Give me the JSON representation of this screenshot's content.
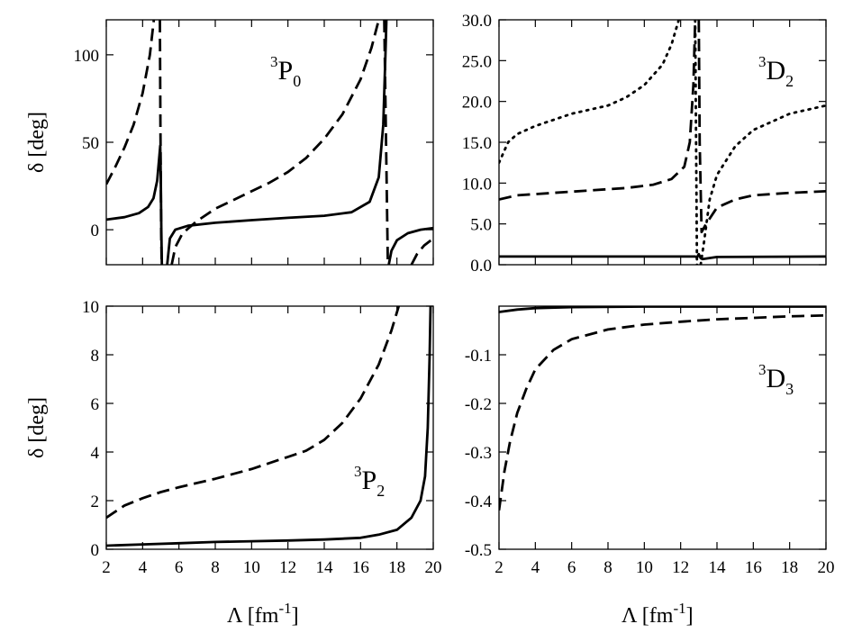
{
  "chart_data": [
    {
      "id": "p0",
      "type": "line",
      "channel": {
        "sup": "3",
        "letter": "P",
        "sub": "0"
      },
      "ylabel": "δ [deg]",
      "xlabel": "",
      "xlim": [
        2,
        20
      ],
      "ylim": [
        -20,
        120
      ],
      "yticks": [
        0,
        50,
        100
      ],
      "yticklabels": [
        "0",
        "50",
        "100"
      ],
      "xticks": [
        2,
        4,
        6,
        8,
        10,
        12,
        14,
        16,
        18,
        20
      ],
      "xticklabels": [],
      "series": [
        {
          "name": "solid",
          "dash": "solid",
          "segments": [
            [
              [
                2.0,
                5.8
              ],
              [
                3.0,
                7.2
              ],
              [
                3.8,
                9.5
              ],
              [
                4.3,
                13
              ],
              [
                4.6,
                18
              ],
              [
                4.8,
                28
              ],
              [
                4.92,
                42
              ],
              [
                4.97,
                48
              ],
              [
                5.0,
                30
              ],
              [
                5.03,
                0
              ],
              [
                5.06,
                -20
              ]
            ],
            [
              [
                5.35,
                -20
              ],
              [
                5.5,
                -5
              ],
              [
                5.8,
                0
              ],
              [
                6.5,
                2.3
              ],
              [
                8,
                4
              ],
              [
                10,
                5.5
              ],
              [
                12,
                6.8
              ],
              [
                14,
                8
              ],
              [
                15.5,
                10
              ],
              [
                16.5,
                16
              ],
              [
                17.0,
                30
              ],
              [
                17.25,
                60
              ],
              [
                17.38,
                105
              ],
              [
                17.42,
                120
              ]
            ],
            [
              [
                17.55,
                -20
              ],
              [
                17.7,
                -12
              ],
              [
                18.0,
                -6
              ],
              [
                18.6,
                -2
              ],
              [
                19.3,
                0
              ],
              [
                20,
                1
              ]
            ]
          ]
        },
        {
          "name": "dashed",
          "dash": "dashed",
          "segments": [
            [
              [
                2.0,
                26
              ],
              [
                2.5,
                36
              ],
              [
                3.0,
                47
              ],
              [
                3.5,
                60
              ],
              [
                4.0,
                78
              ],
              [
                4.4,
                100
              ],
              [
                4.62,
                120
              ]
            ],
            [
              [
                4.95,
                120
              ],
              [
                4.98,
                60
              ],
              [
                5.02,
                0
              ],
              [
                5.05,
                -20
              ]
            ],
            [
              [
                5.6,
                -20
              ],
              [
                5.8,
                -10
              ],
              [
                6.2,
                -2
              ],
              [
                7,
                5
              ],
              [
                8,
                12
              ],
              [
                9,
                17
              ],
              [
                10,
                22
              ],
              [
                11,
                27
              ],
              [
                12,
                33
              ],
              [
                13,
                41
              ],
              [
                14,
                52
              ],
              [
                15,
                66
              ],
              [
                16,
                86
              ],
              [
                16.6,
                104
              ],
              [
                17.0,
                120
              ]
            ],
            [
              [
                17.3,
                120
              ],
              [
                17.4,
                50
              ],
              [
                17.5,
                -20
              ]
            ],
            [
              [
                18.8,
                -20
              ],
              [
                19.1,
                -14
              ],
              [
                19.5,
                -9
              ],
              [
                20,
                -5
              ]
            ]
          ]
        }
      ]
    },
    {
      "id": "d2",
      "type": "line",
      "channel": {
        "sup": "3",
        "letter": "D",
        "sub": "2"
      },
      "ylabel": "",
      "xlabel": "",
      "xlim": [
        2,
        20
      ],
      "ylim": [
        0,
        30
      ],
      "yticks": [
        0,
        5,
        10,
        15,
        20,
        25,
        30
      ],
      "yticklabels": [
        "0.0",
        "5.0",
        "10.0",
        "15.0",
        "20.0",
        "25.0",
        "30.0"
      ],
      "xticks": [
        2,
        4,
        6,
        8,
        10,
        12,
        14,
        16,
        18,
        20
      ],
      "xticklabels": [],
      "series": [
        {
          "name": "solid",
          "dash": "solid",
          "segments": [
            [
              [
                2,
                1.0
              ],
              [
                12.8,
                1.0
              ],
              [
                12.9,
                0.9
              ],
              [
                13.0,
                1.3
              ],
              [
                13.1,
                0.8
              ],
              [
                13.2,
                0.7
              ],
              [
                14,
                0.95
              ],
              [
                20,
                1.0
              ]
            ]
          ]
        },
        {
          "name": "dashed",
          "dash": "dashed",
          "segments": [
            [
              [
                2,
                8.0
              ],
              [
                3,
                8.5
              ],
              [
                5,
                8.8
              ],
              [
                7,
                9.1
              ],
              [
                9,
                9.4
              ],
              [
                10.5,
                9.8
              ],
              [
                11.5,
                10.5
              ],
              [
                12.2,
                12
              ],
              [
                12.5,
                15
              ],
              [
                12.7,
                22
              ],
              [
                12.8,
                30
              ]
            ],
            [
              [
                13.0,
                30
              ],
              [
                13.05,
                15
              ],
              [
                13.15,
                4
              ],
              [
                13.4,
                5
              ],
              [
                14,
                7
              ],
              [
                15,
                8
              ],
              [
                16,
                8.5
              ],
              [
                18,
                8.8
              ],
              [
                20,
                9.0
              ]
            ]
          ]
        },
        {
          "name": "dotted",
          "dash": "dotted",
          "segments": [
            [
              [
                2,
                12.5
              ],
              [
                2.5,
                15
              ],
              [
                3,
                16
              ],
              [
                4,
                17
              ],
              [
                6,
                18.5
              ],
              [
                8,
                19.5
              ],
              [
                9,
                20.5
              ],
              [
                10,
                22
              ],
              [
                11,
                24.5
              ],
              [
                11.5,
                27
              ],
              [
                11.9,
                30
              ]
            ],
            [
              [
                12.8,
                30
              ],
              [
                12.85,
                15
              ],
              [
                12.9,
                0
              ]
            ],
            [
              [
                13.1,
                0
              ],
              [
                13.3,
                3
              ],
              [
                13.6,
                8
              ],
              [
                14,
                11
              ],
              [
                15,
                14.5
              ],
              [
                16,
                16.5
              ],
              [
                18,
                18.5
              ],
              [
                20,
                19.5
              ]
            ]
          ]
        }
      ]
    },
    {
      "id": "p2",
      "type": "line",
      "channel": {
        "sup": "3",
        "letter": "P",
        "sub": "2"
      },
      "ylabel": "δ [deg]",
      "xlabel": "Λ [fm",
      "xlabel_sup": "-1",
      "xlabel_tail": "]",
      "xlim": [
        2,
        20
      ],
      "ylim": [
        0,
        10
      ],
      "yticks": [
        0,
        2,
        4,
        6,
        8,
        10
      ],
      "yticklabels": [
        "0",
        "2",
        "4",
        "6",
        "8",
        "10"
      ],
      "xticks": [
        2,
        4,
        6,
        8,
        10,
        12,
        14,
        16,
        18,
        20
      ],
      "xticklabels": [
        "2",
        "4",
        "6",
        "8",
        "10",
        "12",
        "14",
        "16",
        "18",
        "20"
      ],
      "series": [
        {
          "name": "solid",
          "dash": "solid",
          "segments": [
            [
              [
                2,
                0.15
              ],
              [
                4,
                0.2
              ],
              [
                6,
                0.25
              ],
              [
                8,
                0.3
              ],
              [
                10,
                0.33
              ],
              [
                12,
                0.36
              ],
              [
                14,
                0.4
              ],
              [
                16,
                0.47
              ],
              [
                17,
                0.6
              ],
              [
                18,
                0.8
              ],
              [
                18.8,
                1.3
              ],
              [
                19.3,
                2.0
              ],
              [
                19.55,
                3.0
              ],
              [
                19.7,
                5
              ],
              [
                19.8,
                8
              ],
              [
                19.85,
                10
              ]
            ]
          ]
        },
        {
          "name": "dashed",
          "dash": "dashed",
          "segments": [
            [
              [
                2,
                1.3
              ],
              [
                3,
                1.8
              ],
              [
                4,
                2.1
              ],
              [
                5,
                2.35
              ],
              [
                6,
                2.55
              ],
              [
                8,
                2.9
              ],
              [
                10,
                3.3
              ],
              [
                12,
                3.8
              ],
              [
                13,
                4.05
              ],
              [
                14,
                4.5
              ],
              [
                15,
                5.2
              ],
              [
                16,
                6.2
              ],
              [
                17,
                7.6
              ],
              [
                17.7,
                9.0
              ],
              [
                18.1,
                10
              ]
            ]
          ]
        }
      ]
    },
    {
      "id": "d3",
      "type": "line",
      "channel": {
        "sup": "3",
        "letter": "D",
        "sub": "3"
      },
      "ylabel": "",
      "xlabel": "Λ [fm",
      "xlabel_sup": "-1",
      "xlabel_tail": "]",
      "xlim": [
        2,
        20
      ],
      "ylim": [
        -0.5,
        0
      ],
      "yticks": [
        -0.5,
        -0.4,
        -0.3,
        -0.2,
        -0.1
      ],
      "yticklabels": [
        "-0.5",
        "-0.4",
        "-0.3",
        "-0.2",
        "-0.1"
      ],
      "xticks": [
        2,
        4,
        6,
        8,
        10,
        12,
        14,
        16,
        18,
        20
      ],
      "xticklabels": [
        "2",
        "4",
        "6",
        "8",
        "10",
        "12",
        "14",
        "16",
        "18",
        "20"
      ],
      "series": [
        {
          "name": "solid",
          "dash": "solid",
          "segments": [
            [
              [
                2,
                -0.012
              ],
              [
                3,
                -0.007
              ],
              [
                4,
                -0.004
              ],
              [
                6,
                -0.002
              ],
              [
                10,
                -0.001
              ],
              [
                20,
                -0.001
              ]
            ]
          ]
        },
        {
          "name": "dashed",
          "dash": "dashed",
          "segments": [
            [
              [
                2,
                -0.42
              ],
              [
                2.3,
                -0.34
              ],
              [
                2.6,
                -0.28
              ],
              [
                3,
                -0.22
              ],
              [
                3.5,
                -0.17
              ],
              [
                4,
                -0.13
              ],
              [
                5,
                -0.09
              ],
              [
                6,
                -0.068
              ],
              [
                8,
                -0.048
              ],
              [
                10,
                -0.038
              ],
              [
                12,
                -0.032
              ],
              [
                14,
                -0.027
              ],
              [
                16,
                -0.024
              ],
              [
                18,
                -0.021
              ],
              [
                20,
                -0.019
              ]
            ]
          ]
        }
      ]
    }
  ]
}
